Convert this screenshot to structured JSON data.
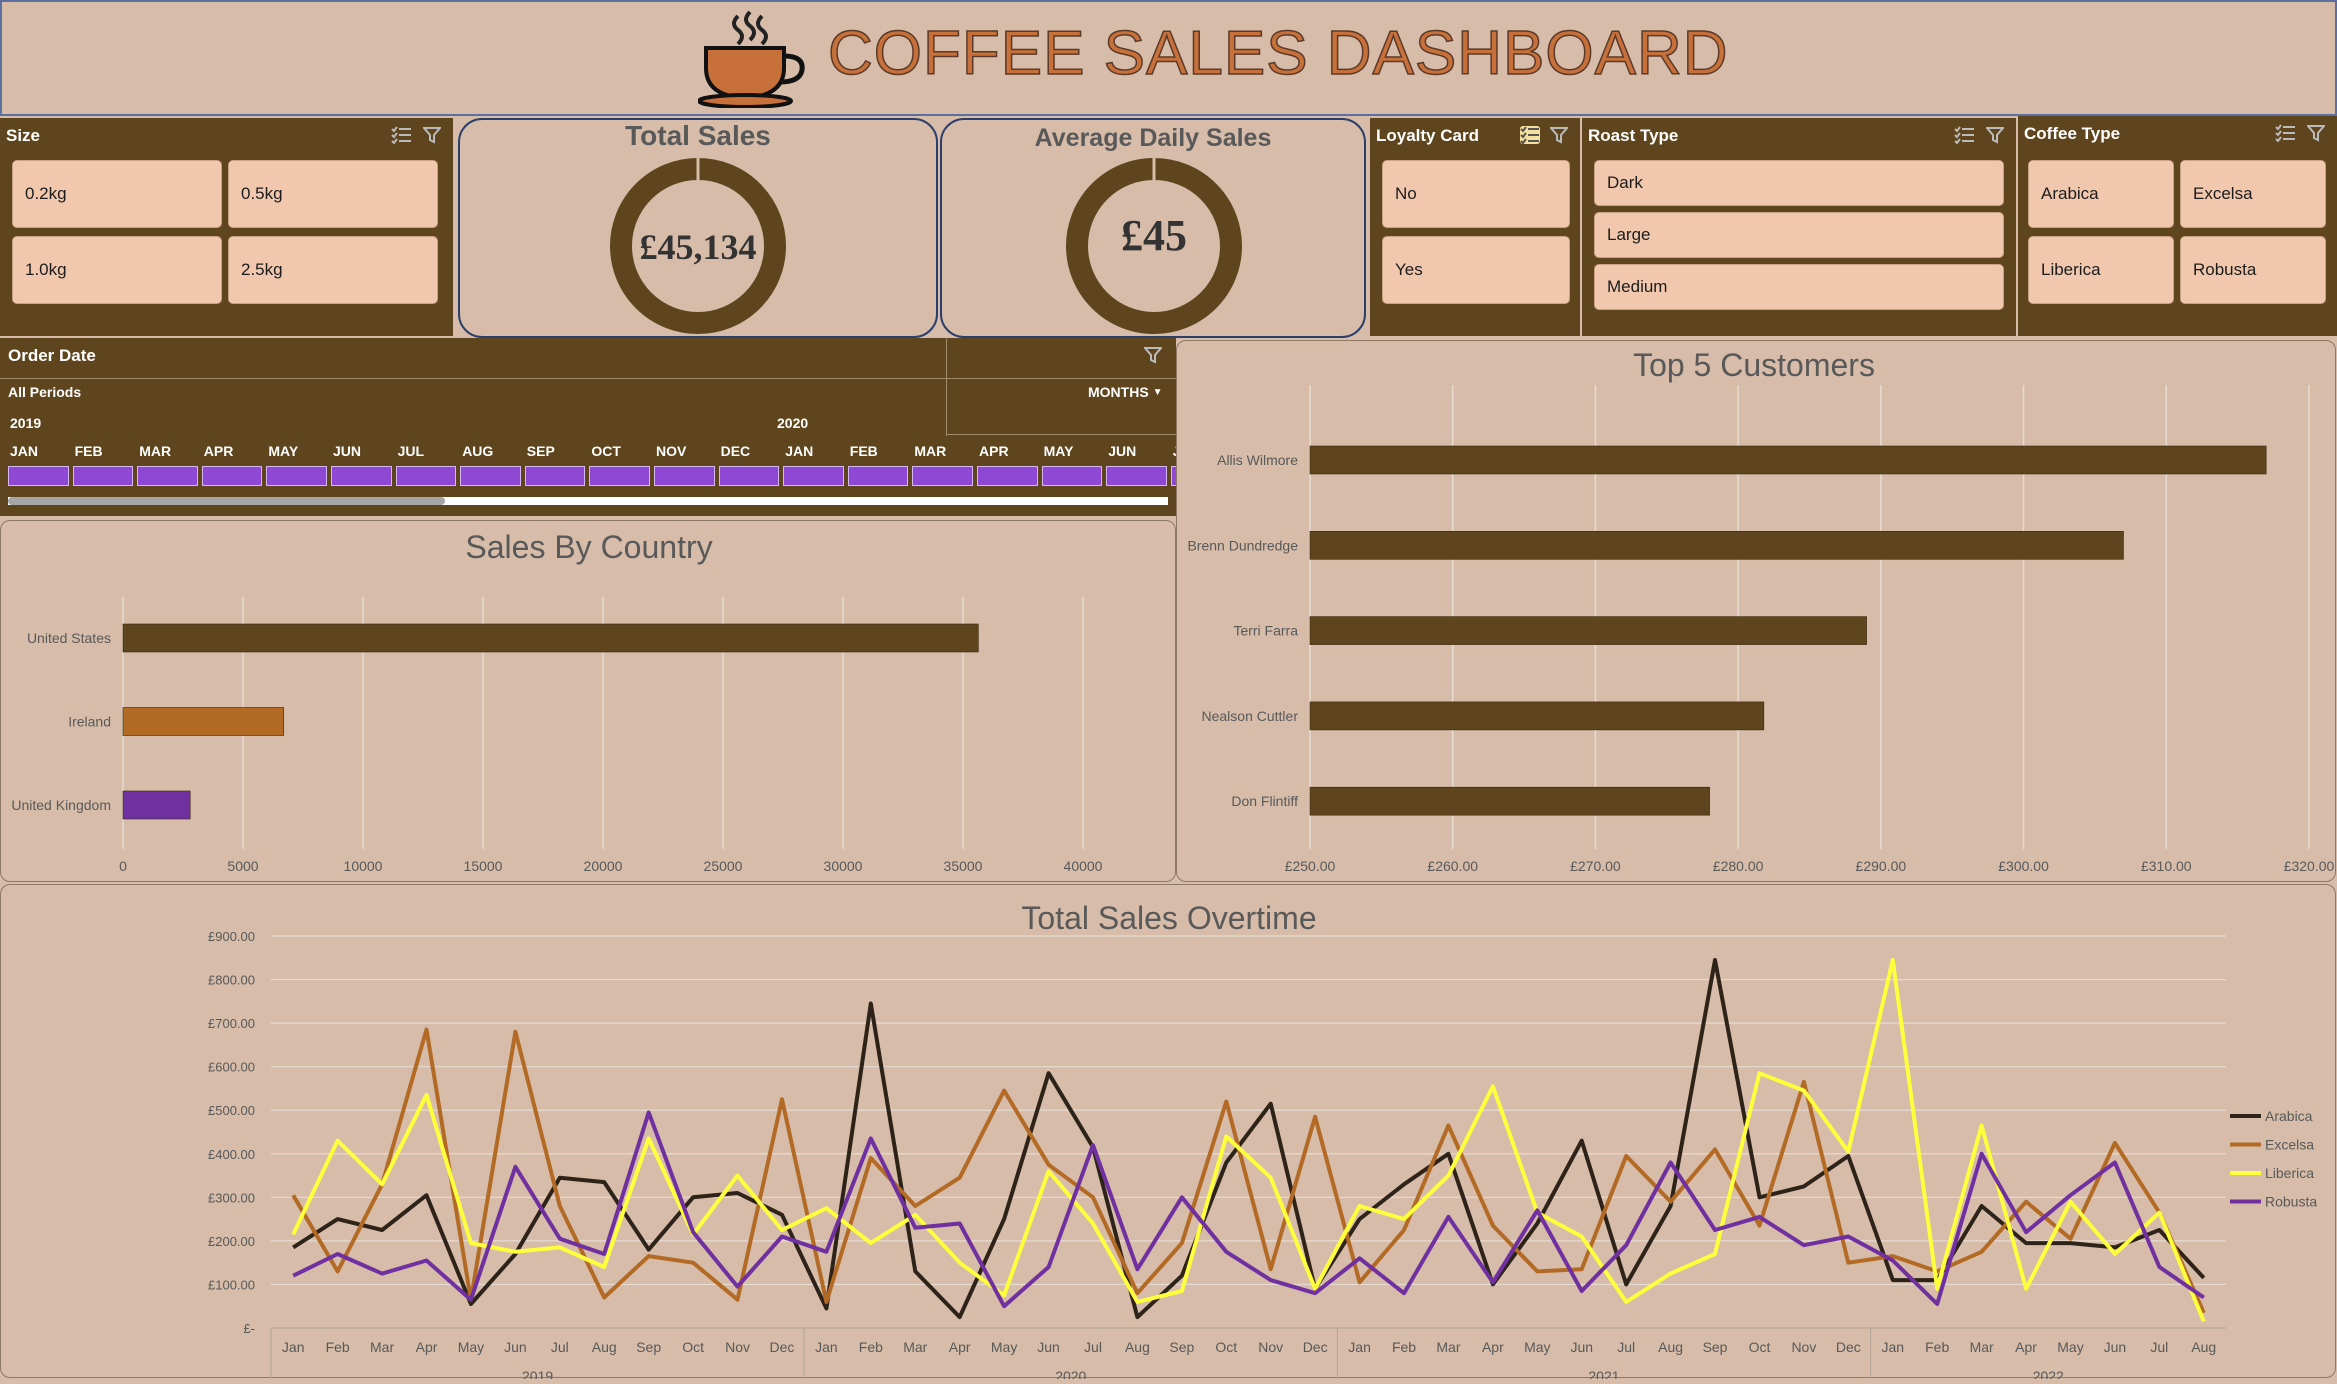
{
  "header": {
    "title": "COFFEE SALES DASHBOARD"
  },
  "size_slicer": {
    "title": "Size",
    "items": [
      "0.2kg",
      "0.5kg",
      "1.0kg",
      "2.5kg"
    ]
  },
  "total_sales": {
    "title": "Total Sales",
    "value": "£45,134"
  },
  "avg_daily": {
    "title": "Average Daily Sales",
    "value": "£45"
  },
  "loyalty_slicer": {
    "title": "Loyalty Card",
    "items": [
      "No",
      "Yes"
    ]
  },
  "roast_slicer": {
    "title": "Roast Type",
    "items": [
      "Dark",
      "Large",
      "Medium"
    ]
  },
  "coffee_slicer": {
    "title": "Coffee Type",
    "items": [
      "Arabica",
      "Excelsa",
      "Liberica",
      "Robusta"
    ]
  },
  "timeline": {
    "title": "Order Date",
    "period_label": "All Periods",
    "level_label": "MONTHS",
    "years": [
      "2019",
      "2020"
    ],
    "months": [
      "JAN",
      "FEB",
      "MAR",
      "APR",
      "MAY",
      "JUN",
      "JUL",
      "AUG",
      "SEP",
      "OCT",
      "NOV",
      "DEC",
      "JAN",
      "FEB",
      "MAR",
      "APR",
      "MAY",
      "JUN",
      "J"
    ]
  },
  "colors": {
    "brown": "#5f451d",
    "orange": "#b36a24",
    "purple": "#7030a0",
    "yellow": "#ffff3c",
    "arabica": "#2e2318",
    "bg": "#d6bca9"
  },
  "chart_data": [
    {
      "type": "bar",
      "title": "Sales By Country",
      "categories": [
        "United States",
        "Ireland",
        "United Kingdom"
      ],
      "values": [
        35639,
        6696,
        2799
      ],
      "xlim": [
        0,
        40000
      ],
      "ticks": [
        "0",
        "5000",
        "10000",
        "15000",
        "20000",
        "25000",
        "30000",
        "35000",
        "40000"
      ],
      "grid": true
    },
    {
      "type": "bar",
      "title": "Top 5 Customers",
      "categories": [
        "Allis Wilmore",
        "Brenn Dundredge",
        "Terri Farra",
        "Nealson Cuttler",
        "Don Flintiff"
      ],
      "values": [
        317.0,
        307.0,
        289.0,
        281.8,
        278.0
      ],
      "xlim": [
        250,
        320
      ],
      "ticks": [
        "£250.00",
        "£260.00",
        "£270.00",
        "£280.00",
        "£290.00",
        "£300.00",
        "£310.00",
        "£320.00"
      ],
      "grid": true
    },
    {
      "type": "line",
      "title": "Total Sales Overtime",
      "months": [
        "Jan",
        "Feb",
        "Mar",
        "Apr",
        "May",
        "Jun",
        "Jul",
        "Aug",
        "Sep",
        "Oct",
        "Nov",
        "Dec",
        "Jan",
        "Feb",
        "Mar",
        "Apr",
        "May",
        "Jun",
        "Jul",
        "Aug",
        "Sep",
        "Oct",
        "Nov",
        "Dec",
        "Jan",
        "Feb",
        "Mar",
        "Apr",
        "May",
        "Jun",
        "Jul",
        "Aug",
        "Sep",
        "Oct",
        "Nov",
        "Dec",
        "Jan",
        "Feb",
        "Mar",
        "Apr",
        "May",
        "Jun",
        "Jul",
        "Aug"
      ],
      "years": [
        "2019",
        "2020",
        "2021",
        "2022"
      ],
      "ylim": [
        0,
        900
      ],
      "yticks": [
        "£-",
        "£100.00",
        "£200.00",
        "£300.00",
        "£400.00",
        "£500.00",
        "£600.00",
        "£700.00",
        "£800.00",
        "£900.00"
      ],
      "legend_position": "right",
      "series": [
        {
          "name": "Arabica",
          "color": "#2e2318",
          "values": [
            185,
            250,
            225,
            305,
            55,
            170,
            345,
            335,
            180,
            300,
            310,
            260,
            45,
            745,
            130,
            25,
            250,
            585,
            415,
            25,
            120,
            380,
            515,
            90,
            250,
            330,
            400,
            100,
            240,
            430,
            100,
            280,
            845,
            300,
            325,
            395,
            110,
            110,
            280,
            195,
            195,
            185,
            225,
            115
          ]
        },
        {
          "name": "Excelsa",
          "color": "#b36a24",
          "values": [
            305,
            130,
            330,
            685,
            65,
            680,
            280,
            70,
            165,
            150,
            65,
            525,
            60,
            390,
            280,
            345,
            545,
            375,
            300,
            80,
            195,
            520,
            135,
            485,
            105,
            225,
            465,
            235,
            130,
            135,
            395,
            290,
            410,
            235,
            565,
            150,
            165,
            130,
            175,
            290,
            205,
            425,
            265,
            35
          ]
        },
        {
          "name": "Liberica",
          "color": "#ffff3c",
          "values": [
            215,
            430,
            330,
            535,
            195,
            175,
            185,
            140,
            435,
            215,
            350,
            225,
            275,
            195,
            260,
            150,
            75,
            360,
            240,
            60,
            85,
            440,
            345,
            90,
            280,
            250,
            350,
            555,
            265,
            210,
            60,
            125,
            170,
            585,
            545,
            405,
            845,
            90,
            465,
            90,
            290,
            170,
            265,
            15
          ]
        },
        {
          "name": "Robusta",
          "color": "#7030a0",
          "values": [
            120,
            170,
            125,
            155,
            65,
            370,
            205,
            170,
            495,
            220,
            95,
            210,
            175,
            435,
            230,
            240,
            50,
            140,
            420,
            135,
            300,
            175,
            110,
            80,
            160,
            80,
            255,
            105,
            270,
            85,
            190,
            380,
            225,
            255,
            190,
            210,
            155,
            55,
            400,
            220,
            305,
            380,
            140,
            70
          ]
        }
      ]
    }
  ]
}
